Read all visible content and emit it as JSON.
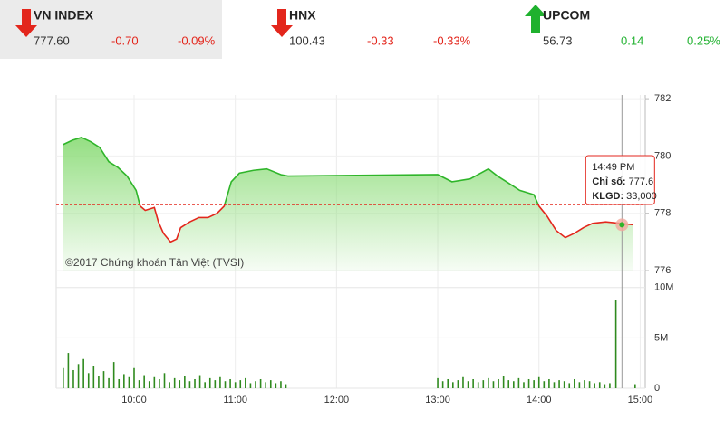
{
  "indices": [
    {
      "name": "VN INDEX",
      "value": "777.60",
      "change": "-0.70",
      "percent": "-0.09%",
      "direction": "down",
      "selected": true
    },
    {
      "name": "HNX",
      "value": "100.43",
      "change": "-0.33",
      "percent": "-0.33%",
      "direction": "down",
      "selected": false
    },
    {
      "name": "UPCOM",
      "value": "56.73",
      "change": "0.14",
      "percent": "0.25%",
      "direction": "up",
      "selected": false
    }
  ],
  "colors": {
    "up": "#1fb12e",
    "down": "#e3261c",
    "selected_background": "#ebebeb"
  },
  "chart_data": [
    {
      "type": "line",
      "watermark": "©2017 Chứng khoán Tân Việt (TVSI)",
      "x": [
        9.3,
        9.39,
        9.48,
        9.57,
        9.66,
        9.75,
        9.84,
        9.93,
        10.02,
        10.06,
        10.11,
        10.2,
        10.24,
        10.29,
        10.36,
        10.42,
        10.46,
        10.55,
        10.64,
        10.73,
        10.82,
        10.89,
        10.96,
        11.04,
        11.18,
        11.31,
        11.45,
        11.52,
        13.0,
        13.14,
        13.32,
        13.5,
        13.59,
        13.68,
        13.81,
        13.95,
        14.0,
        14.08,
        14.17,
        14.26,
        14.35,
        14.44,
        14.53,
        14.66,
        14.8,
        14.93
      ],
      "values": [
        780.4,
        780.55,
        780.65,
        780.5,
        780.3,
        779.8,
        779.6,
        779.3,
        778.8,
        778.25,
        778.1,
        778.2,
        777.7,
        777.3,
        777.0,
        777.1,
        777.5,
        777.7,
        777.85,
        777.85,
        778.0,
        778.25,
        779.1,
        779.4,
        779.5,
        779.55,
        779.35,
        779.3,
        779.35,
        779.1,
        779.2,
        779.55,
        779.3,
        779.1,
        778.8,
        778.65,
        778.25,
        777.9,
        777.4,
        777.15,
        777.3,
        777.5,
        777.65,
        777.7,
        777.65,
        777.6
      ],
      "reference": 778.3,
      "up_color": "#2fb52a",
      "down_color": "#e3261c",
      "fill_color": "#8fdd7c",
      "xlim": [
        9.23,
        15.05
      ],
      "ylim": [
        776,
        782.13
      ],
      "yticks": [
        776,
        778,
        780,
        782
      ],
      "tooltip": {
        "x": 14.82,
        "time": "14:49 PM",
        "index_label": "Chỉ số:",
        "index_value": 777.6,
        "volume_label": "KLGD:",
        "volume_value": "33,000"
      }
    },
    {
      "type": "bar",
      "x": [
        9.3,
        9.35,
        9.4,
        9.45,
        9.5,
        9.55,
        9.6,
        9.65,
        9.7,
        9.75,
        9.8,
        9.85,
        9.9,
        9.95,
        10.0,
        10.05,
        10.1,
        10.15,
        10.2,
        10.25,
        10.3,
        10.35,
        10.4,
        10.45,
        10.5,
        10.55,
        10.6,
        10.65,
        10.7,
        10.75,
        10.8,
        10.85,
        10.9,
        10.95,
        11.0,
        11.05,
        11.1,
        11.15,
        11.2,
        11.25,
        11.3,
        11.35,
        11.4,
        11.45,
        11.5,
        13.0,
        13.05,
        13.1,
        13.15,
        13.2,
        13.25,
        13.3,
        13.35,
        13.4,
        13.45,
        13.5,
        13.55,
        13.6,
        13.65,
        13.7,
        13.75,
        13.8,
        13.85,
        13.9,
        13.95,
        14.0,
        14.05,
        14.1,
        14.15,
        14.2,
        14.25,
        14.3,
        14.35,
        14.4,
        14.45,
        14.5,
        14.55,
        14.6,
        14.65,
        14.7,
        14.76,
        14.95
      ],
      "values": [
        2.0,
        3.5,
        1.8,
        2.4,
        2.9,
        1.5,
        2.2,
        1.2,
        1.7,
        1.0,
        2.6,
        0.9,
        1.4,
        1.1,
        2.0,
        0.8,
        1.3,
        0.7,
        1.1,
        0.9,
        1.5,
        0.6,
        1.0,
        0.8,
        1.2,
        0.7,
        0.9,
        1.3,
        0.6,
        1.0,
        0.8,
        1.1,
        0.7,
        0.9,
        0.6,
        0.8,
        1.0,
        0.5,
        0.7,
        0.9,
        0.6,
        0.8,
        0.5,
        0.7,
        0.4,
        1.0,
        0.7,
        0.9,
        0.6,
        0.8,
        1.1,
        0.7,
        0.9,
        0.6,
        0.8,
        1.0,
        0.7,
        0.9,
        1.2,
        0.8,
        0.7,
        1.0,
        0.6,
        0.9,
        0.8,
        1.1,
        0.7,
        0.9,
        0.6,
        0.8,
        0.7,
        0.5,
        0.9,
        0.6,
        0.8,
        0.7,
        0.5,
        0.6,
        0.4,
        0.5,
        8.8,
        0.4
      ],
      "color": "#2f8a1e",
      "xlim": [
        9.23,
        15.05
      ],
      "ylim": [
        0,
        10.25
      ],
      "yticks": [
        0,
        {
          "value": 5,
          "label": "5M"
        },
        {
          "value": 10,
          "label": "10M"
        }
      ],
      "xticks": [
        {
          "value": 10,
          "label": "10:00"
        },
        {
          "value": 11,
          "label": "11:00"
        },
        {
          "value": 12,
          "label": "12:00"
        },
        {
          "value": 13,
          "label": "13:00"
        },
        {
          "value": 14,
          "label": "14:00"
        },
        {
          "value": 15,
          "label": "15:00"
        }
      ]
    }
  ]
}
